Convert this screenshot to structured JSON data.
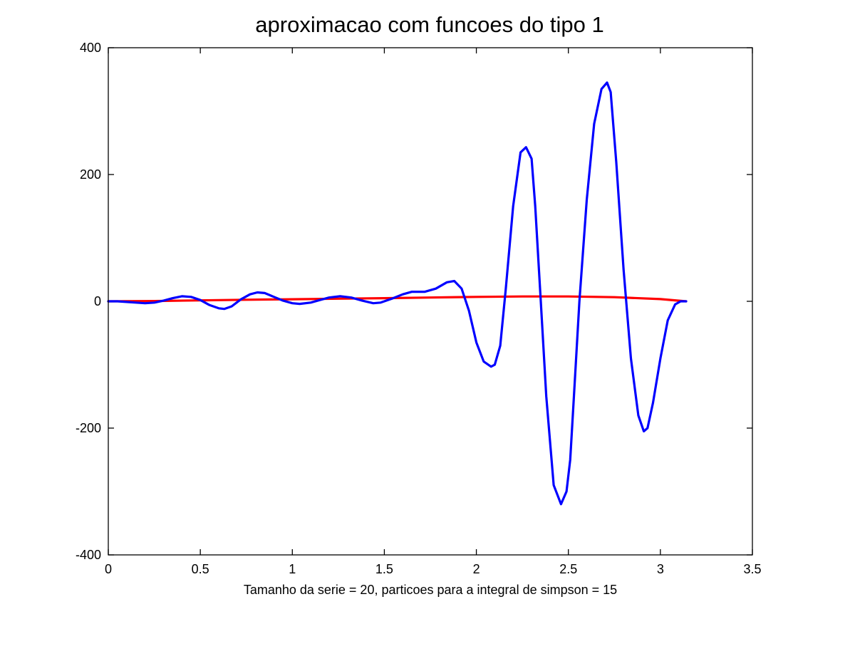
{
  "chart_data": {
    "type": "line",
    "title": "aproximacao com funcoes do tipo 1",
    "xlabel": "Tamanho da serie = 20, particoes para a integral de simpson = 15",
    "ylabel": "",
    "xlim": [
      0,
      3.5
    ],
    "ylim": [
      -400,
      400
    ],
    "xticks": [
      0,
      0.5,
      1,
      1.5,
      2,
      2.5,
      3,
      3.5
    ],
    "xtick_labels": [
      "0",
      "0.5",
      "1",
      "1.5",
      "2",
      "2.5",
      "3",
      "3.5"
    ],
    "yticks": [
      -400,
      -200,
      0,
      200,
      400
    ],
    "ytick_labels": [
      "-400",
      "-200",
      "0",
      "200",
      "400"
    ],
    "grid": false,
    "legend": "none",
    "series": [
      {
        "color": "#ff0000",
        "x": [
          0,
          0.25,
          0.5,
          0.75,
          1.0,
          1.25,
          1.5,
          1.75,
          2.0,
          2.25,
          2.5,
          2.75,
          3.0,
          3.14
        ],
        "y": [
          0,
          0.5,
          1.5,
          2.5,
          3.3,
          4.2,
          5.0,
          6.0,
          7.0,
          7.6,
          7.6,
          6.5,
          3.5,
          0
        ]
      },
      {
        "color": "#0000ff",
        "x": [
          0,
          0.05,
          0.1,
          0.15,
          0.2,
          0.25,
          0.3,
          0.35,
          0.4,
          0.45,
          0.5,
          0.55,
          0.6,
          0.63,
          0.67,
          0.72,
          0.77,
          0.81,
          0.85,
          0.9,
          0.95,
          1.0,
          1.04,
          1.1,
          1.15,
          1.2,
          1.26,
          1.32,
          1.38,
          1.44,
          1.48,
          1.54,
          1.6,
          1.65,
          1.72,
          1.78,
          1.84,
          1.88,
          1.92,
          1.96,
          2.0,
          2.04,
          2.08,
          2.1,
          2.13,
          2.16,
          2.2,
          2.24,
          2.27,
          2.3,
          2.32,
          2.35,
          2.38,
          2.42,
          2.46,
          2.49,
          2.51,
          2.53,
          2.56,
          2.6,
          2.64,
          2.68,
          2.71,
          2.73,
          2.76,
          2.8,
          2.84,
          2.88,
          2.91,
          2.93,
          2.96,
          3.0,
          3.04,
          3.08,
          3.11,
          3.14
        ],
        "y": [
          0,
          0,
          -1,
          -2,
          -3,
          -2,
          1,
          5,
          8,
          7,
          2,
          -6,
          -11,
          -12,
          -8,
          3,
          11,
          14,
          13,
          7,
          1,
          -3,
          -4,
          -2,
          2,
          6,
          8,
          6,
          1,
          -3,
          -2,
          4,
          11,
          15,
          15,
          20,
          30,
          32,
          20,
          -15,
          -65,
          -95,
          -103,
          -100,
          -70,
          20,
          150,
          235,
          243,
          225,
          150,
          0,
          -150,
          -290,
          -320,
          -300,
          -250,
          -150,
          0,
          160,
          280,
          335,
          345,
          330,
          220,
          50,
          -90,
          -180,
          -205,
          -200,
          -160,
          -90,
          -30,
          -5,
          0,
          0
        ]
      }
    ]
  }
}
